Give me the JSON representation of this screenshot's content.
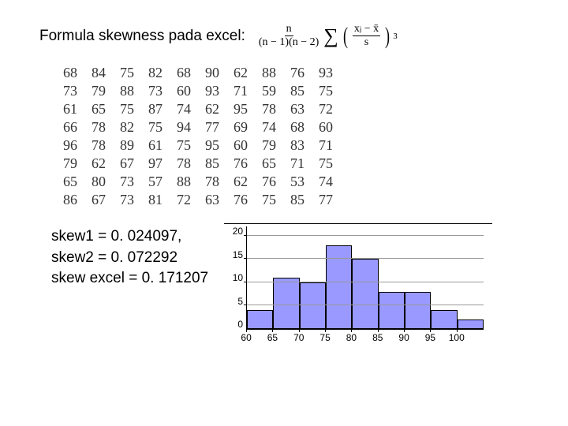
{
  "formula_label": "Formula skewness pada excel:",
  "formula": {
    "frac1_num": "n",
    "frac1_den": "(n − 1)(n − 2)",
    "inner_num": "xⱼ − x̄",
    "inner_den": "s"
  },
  "table": {
    "rows": [
      [
        68,
        84,
        75,
        82,
        68,
        90,
        62,
        88,
        76,
        93
      ],
      [
        73,
        79,
        88,
        73,
        60,
        93,
        71,
        59,
        85,
        75
      ],
      [
        61,
        65,
        75,
        87,
        74,
        62,
        95,
        78,
        63,
        72
      ],
      [
        66,
        78,
        82,
        75,
        94,
        77,
        69,
        74,
        68,
        60
      ],
      [
        96,
        78,
        89,
        61,
        75,
        95,
        60,
        79,
        83,
        71
      ],
      [
        79,
        62,
        67,
        97,
        78,
        85,
        76,
        65,
        71,
        75
      ],
      [
        65,
        80,
        73,
        57,
        88,
        78,
        62,
        76,
        53,
        74
      ],
      [
        86,
        67,
        73,
        81,
        72,
        63,
        76,
        75,
        85,
        77
      ]
    ]
  },
  "results": {
    "line1": "skew1 = 0. 024097,",
    "line2": "skew2 = 0. 072292",
    "line3": "skew excel = 0. 171207"
  },
  "chart": {
    "type": "histogram",
    "bar_color": "#9999ff",
    "border_color": "#000000",
    "grid_color": "#999999",
    "background_color": "#ffffff",
    "y_ticks": [
      20,
      15,
      10,
      5,
      0
    ],
    "ymax": 22,
    "x_ticks": [
      60,
      65,
      70,
      75,
      80,
      85,
      90,
      95,
      100
    ],
    "values": [
      4,
      11,
      10,
      18,
      15,
      8,
      8,
      4,
      2
    ],
    "bins": 9
  }
}
